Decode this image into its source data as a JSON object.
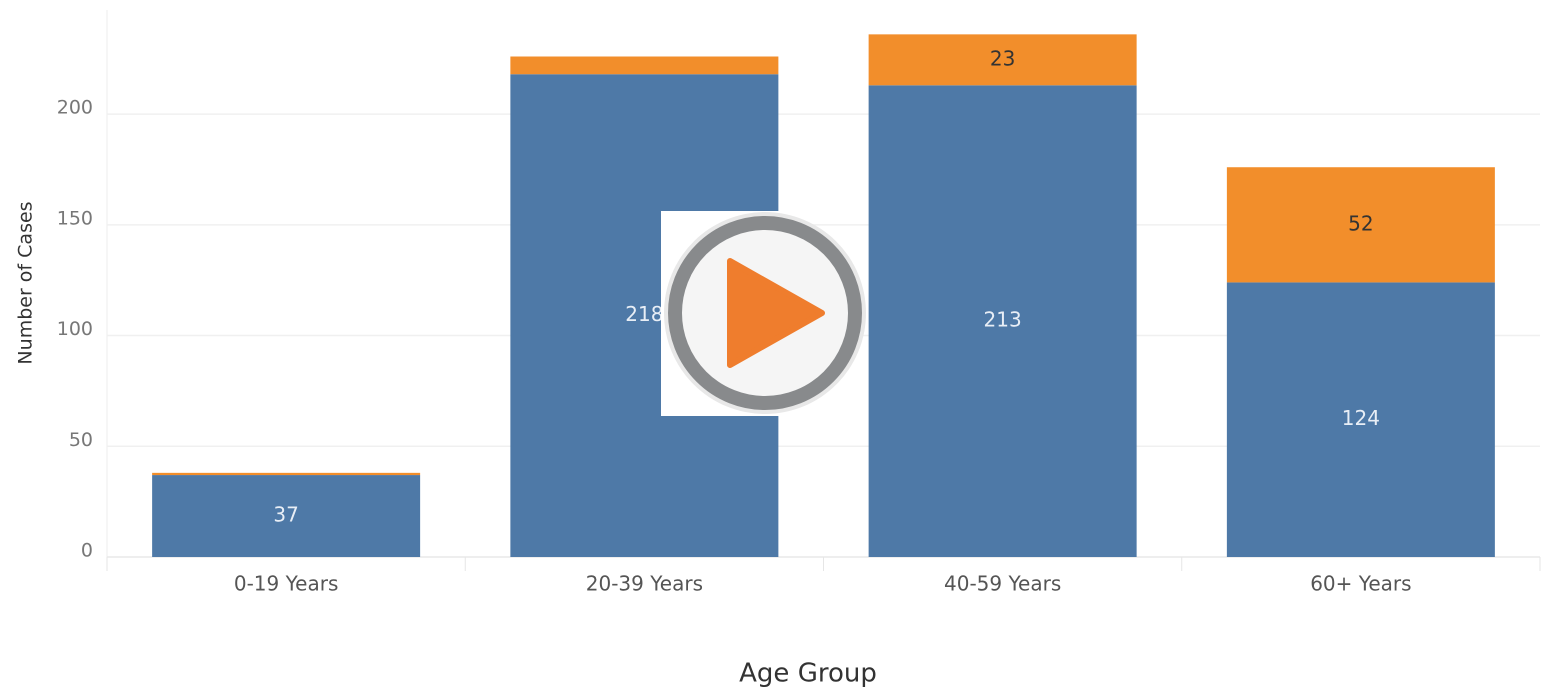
{
  "chart_data": {
    "type": "stacked_bar",
    "x_label": "Age Group",
    "y_label": "Number of Cases",
    "categories": [
      "0-19 Years",
      "20-39 Years",
      "40-59 Years",
      "60+ Years"
    ],
    "series": [
      {
        "color": "#4e79a7",
        "values": [
          37,
          218,
          213,
          124
        ]
      },
      {
        "color": "#f28e2b",
        "values": [
          1,
          8,
          23,
          52
        ]
      }
    ],
    "ylim": [
      0,
      247
    ],
    "yticks": [
      0,
      50,
      100,
      150,
      200
    ],
    "grid": true
  }
}
